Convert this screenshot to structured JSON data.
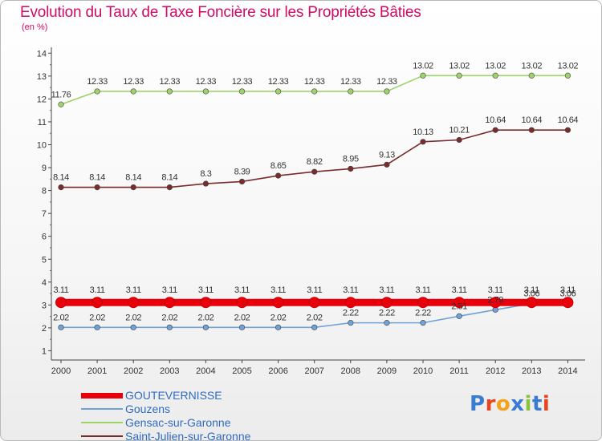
{
  "header": {
    "title": "Evolution du Taux de Taxe Foncière sur les Propriétés Bâties",
    "unit": "(en %)"
  },
  "branding": {
    "logo_text": "Proxiti"
  },
  "chart_data": {
    "type": "line",
    "title": "Evolution du Taux de Taxe Foncière sur les Propriétés Bâties",
    "ylabel": "(en %)",
    "xlabel": "",
    "x": [
      "2000",
      "2001",
      "2002",
      "2003",
      "2004",
      "2005",
      "2006",
      "2007",
      "2008",
      "2009",
      "2010",
      "2011",
      "2012",
      "2013",
      "2014"
    ],
    "yticks": [
      "1",
      "2",
      "3",
      "4",
      "5",
      "6",
      "7",
      "8",
      "9",
      "10",
      "11",
      "12",
      "13",
      "14"
    ],
    "ylim": [
      0.5,
      14.2
    ],
    "grid": false,
    "legend_position": "bottom-left",
    "series": [
      {
        "name": "GOUTEVERNISSE",
        "color": "#e8000b",
        "emphasis": true,
        "values": [
          3.11,
          3.11,
          3.11,
          3.11,
          3.11,
          3.11,
          3.11,
          3.11,
          3.11,
          3.11,
          3.11,
          3.11,
          3.11,
          3.11,
          3.11
        ],
        "labels": [
          "3.11",
          "3.11",
          "3.11",
          "3.11",
          "3.11",
          "3.11",
          "3.11",
          "3.11",
          "3.11",
          "3.11",
          "3.11",
          "3.11",
          "3.11",
          "3.11",
          "3.11"
        ]
      },
      {
        "name": "Gouzens",
        "color": "#6fa2d6",
        "values": [
          2.02,
          2.02,
          2.02,
          2.02,
          2.02,
          2.02,
          2.02,
          2.02,
          2.22,
          2.22,
          2.22,
          2.51,
          2.79,
          3.06,
          3.06
        ],
        "labels": [
          "2.02",
          "2.02",
          "2.02",
          "2.02",
          "2.02",
          "2.02",
          "2.02",
          "2.02",
          "2.22",
          "2.22",
          "2.22",
          "2.51",
          "2.79",
          "3.06",
          "3.06"
        ]
      },
      {
        "name": "Gensac-sur-Garonne",
        "color": "#9ed36a",
        "values": [
          11.76,
          12.33,
          12.33,
          12.33,
          12.33,
          12.33,
          12.33,
          12.33,
          12.33,
          12.33,
          13.02,
          13.02,
          13.02,
          13.02,
          13.02
        ],
        "labels": [
          "11.76",
          "12.33",
          "12.33",
          "12.33",
          "12.33",
          "12.33",
          "12.33",
          "12.33",
          "12.33",
          "12.33",
          "13.02",
          "13.02",
          "13.02",
          "13.02",
          "13.02"
        ]
      },
      {
        "name": "Saint-Julien-sur-Garonne",
        "color": "#7a2b2b",
        "values": [
          8.14,
          8.14,
          8.14,
          8.14,
          8.3,
          8.39,
          8.65,
          8.82,
          8.95,
          9.13,
          10.13,
          10.21,
          10.64,
          10.64,
          10.64
        ],
        "labels": [
          "8.14",
          "8.14",
          "8.14",
          "8.14",
          "8.3",
          "8.39",
          "8.65",
          "8.82",
          "8.95",
          "9.13",
          "10.13",
          "10.21",
          "10.64",
          "10.64",
          "10.64"
        ]
      }
    ]
  }
}
